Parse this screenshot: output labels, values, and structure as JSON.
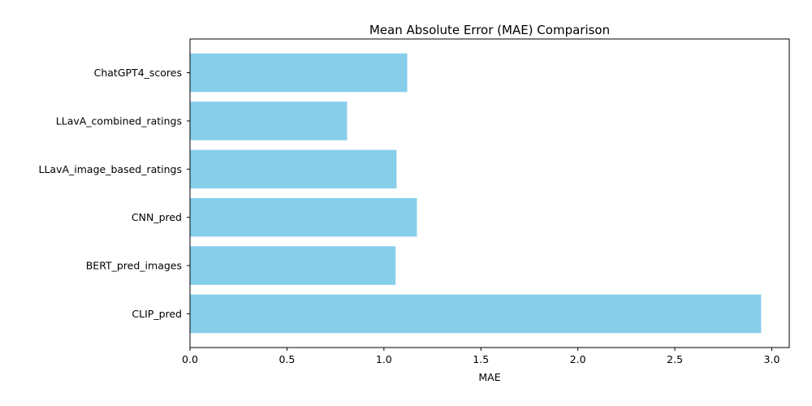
{
  "chart_data": {
    "type": "bar",
    "orientation": "horizontal",
    "title": "Mean Absolute Error (MAE) Comparison",
    "xlabel": "MAE",
    "ylabel": "",
    "xlim": [
      0,
      3.09
    ],
    "xticks": [
      0.0,
      0.5,
      1.0,
      1.5,
      2.0,
      2.5,
      3.0
    ],
    "xtick_labels": [
      "0.0",
      "0.5",
      "1.0",
      "1.5",
      "2.0",
      "2.5",
      "3.0"
    ],
    "categories": [
      "ChatGPT4_scores",
      "LLavA_combined_ratings",
      "LLavA_image_based_ratings",
      "CNN_pred",
      "BERT_pred_images",
      "CLIP_pred"
    ],
    "values": [
      1.12,
      0.81,
      1.065,
      1.17,
      1.06,
      2.945
    ],
    "bar_color": "#87ceeb",
    "grid": false,
    "legend": "none"
  }
}
